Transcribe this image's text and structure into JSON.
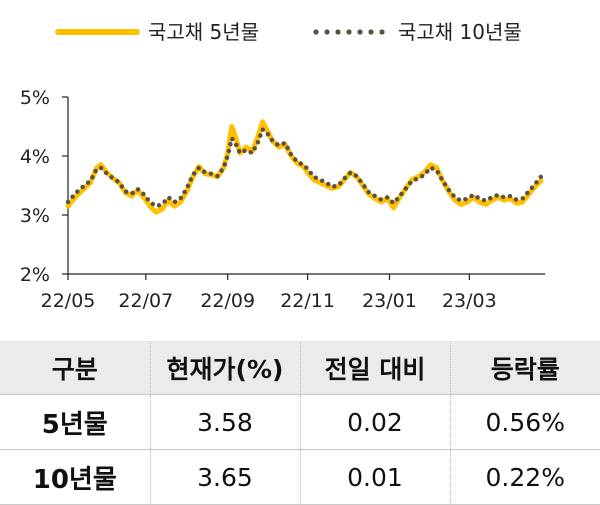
{
  "chart_data": {
    "type": "line",
    "title": "",
    "xlabel": "",
    "ylabel": "",
    "ylim": [
      2,
      5
    ],
    "y_ticks": [
      "2%",
      "3%",
      "4%",
      "5%"
    ],
    "x_tick_labels": [
      "22/05",
      "22/07",
      "22/09",
      "22/11",
      "23/01",
      "23/03"
    ],
    "x_tick_positions": [
      0,
      38,
      78,
      117,
      157,
      196
    ],
    "x_max": 231,
    "grid": false,
    "legend": "top",
    "colors": {
      "5y": "#FFC000",
      "10y": "#595142"
    },
    "series": [
      {
        "name": "국고채 5년물",
        "style": "solid",
        "points": [
          [
            0,
            3.15
          ],
          [
            4,
            3.32
          ],
          [
            8,
            3.45
          ],
          [
            11,
            3.55
          ],
          [
            14,
            3.8
          ],
          [
            16,
            3.85
          ],
          [
            19,
            3.72
          ],
          [
            22,
            3.62
          ],
          [
            25,
            3.55
          ],
          [
            28,
            3.38
          ],
          [
            31,
            3.32
          ],
          [
            34,
            3.42
          ],
          [
            37,
            3.3
          ],
          [
            40,
            3.15
          ],
          [
            43,
            3.05
          ],
          [
            46,
            3.1
          ],
          [
            49,
            3.25
          ],
          [
            52,
            3.15
          ],
          [
            55,
            3.22
          ],
          [
            58,
            3.4
          ],
          [
            61,
            3.65
          ],
          [
            64,
            3.82
          ],
          [
            67,
            3.7
          ],
          [
            70,
            3.68
          ],
          [
            73,
            3.65
          ],
          [
            76,
            3.8
          ],
          [
            78,
            4.05
          ],
          [
            80,
            4.5
          ],
          [
            82,
            4.3
          ],
          [
            84,
            4.05
          ],
          [
            87,
            4.15
          ],
          [
            90,
            4.08
          ],
          [
            93,
            4.35
          ],
          [
            95,
            4.58
          ],
          [
            97,
            4.45
          ],
          [
            100,
            4.25
          ],
          [
            103,
            4.15
          ],
          [
            106,
            4.2
          ],
          [
            109,
            4.0
          ],
          [
            112,
            3.88
          ],
          [
            115,
            3.82
          ],
          [
            117,
            3.72
          ],
          [
            120,
            3.6
          ],
          [
            123,
            3.55
          ],
          [
            126,
            3.5
          ],
          [
            129,
            3.45
          ],
          [
            132,
            3.48
          ],
          [
            135,
            3.6
          ],
          [
            138,
            3.72
          ],
          [
            141,
            3.65
          ],
          [
            144,
            3.5
          ],
          [
            147,
            3.35
          ],
          [
            150,
            3.28
          ],
          [
            153,
            3.22
          ],
          [
            156,
            3.28
          ],
          [
            159,
            3.12
          ],
          [
            162,
            3.3
          ],
          [
            165,
            3.45
          ],
          [
            168,
            3.6
          ],
          [
            171,
            3.65
          ],
          [
            174,
            3.72
          ],
          [
            177,
            3.85
          ],
          [
            180,
            3.8
          ],
          [
            183,
            3.58
          ],
          [
            186,
            3.4
          ],
          [
            189,
            3.25
          ],
          [
            192,
            3.18
          ],
          [
            195,
            3.22
          ],
          [
            198,
            3.3
          ],
          [
            201,
            3.22
          ],
          [
            204,
            3.18
          ],
          [
            207,
            3.25
          ],
          [
            210,
            3.3
          ],
          [
            213,
            3.25
          ],
          [
            216,
            3.28
          ],
          [
            219,
            3.2
          ],
          [
            222,
            3.22
          ],
          [
            225,
            3.35
          ],
          [
            228,
            3.48
          ],
          [
            231,
            3.58
          ]
        ]
      },
      {
        "name": "국고채 10년물",
        "style": "dotted",
        "points": [
          [
            0,
            3.22
          ],
          [
            4,
            3.38
          ],
          [
            8,
            3.5
          ],
          [
            11,
            3.58
          ],
          [
            14,
            3.78
          ],
          [
            16,
            3.8
          ],
          [
            19,
            3.7
          ],
          [
            22,
            3.62
          ],
          [
            25,
            3.55
          ],
          [
            28,
            3.4
          ],
          [
            31,
            3.36
          ],
          [
            34,
            3.44
          ],
          [
            37,
            3.35
          ],
          [
            40,
            3.22
          ],
          [
            43,
            3.15
          ],
          [
            46,
            3.18
          ],
          [
            49,
            3.3
          ],
          [
            52,
            3.22
          ],
          [
            55,
            3.28
          ],
          [
            58,
            3.45
          ],
          [
            61,
            3.68
          ],
          [
            64,
            3.8
          ],
          [
            67,
            3.72
          ],
          [
            70,
            3.7
          ],
          [
            73,
            3.66
          ],
          [
            76,
            3.8
          ],
          [
            78,
            4.0
          ],
          [
            80,
            4.3
          ],
          [
            82,
            4.2
          ],
          [
            84,
            4.05
          ],
          [
            87,
            4.1
          ],
          [
            90,
            4.05
          ],
          [
            93,
            4.25
          ],
          [
            95,
            4.45
          ],
          [
            97,
            4.4
          ],
          [
            100,
            4.25
          ],
          [
            103,
            4.18
          ],
          [
            106,
            4.22
          ],
          [
            109,
            4.02
          ],
          [
            112,
            3.9
          ],
          [
            115,
            3.85
          ],
          [
            117,
            3.78
          ],
          [
            120,
            3.65
          ],
          [
            123,
            3.6
          ],
          [
            126,
            3.55
          ],
          [
            129,
            3.48
          ],
          [
            132,
            3.5
          ],
          [
            135,
            3.62
          ],
          [
            138,
            3.72
          ],
          [
            141,
            3.66
          ],
          [
            144,
            3.52
          ],
          [
            147,
            3.38
          ],
          [
            150,
            3.32
          ],
          [
            153,
            3.26
          ],
          [
            156,
            3.3
          ],
          [
            159,
            3.2
          ],
          [
            162,
            3.32
          ],
          [
            165,
            3.45
          ],
          [
            168,
            3.58
          ],
          [
            171,
            3.62
          ],
          [
            174,
            3.68
          ],
          [
            177,
            3.8
          ],
          [
            180,
            3.76
          ],
          [
            183,
            3.58
          ],
          [
            186,
            3.42
          ],
          [
            189,
            3.3
          ],
          [
            192,
            3.24
          ],
          [
            195,
            3.28
          ],
          [
            198,
            3.34
          ],
          [
            201,
            3.28
          ],
          [
            204,
            3.24
          ],
          [
            207,
            3.3
          ],
          [
            210,
            3.34
          ],
          [
            213,
            3.3
          ],
          [
            216,
            3.32
          ],
          [
            219,
            3.26
          ],
          [
            222,
            3.28
          ],
          [
            225,
            3.4
          ],
          [
            228,
            3.52
          ],
          [
            231,
            3.65
          ]
        ]
      }
    ]
  },
  "table": {
    "headers": [
      "구분",
      "현재가(%)",
      "전일 대비",
      "등락률"
    ],
    "rows": [
      [
        "5년물",
        "3.58",
        "0.02",
        "0.56%"
      ],
      [
        "10년물",
        "3.65",
        "0.01",
        "0.22%"
      ]
    ]
  }
}
